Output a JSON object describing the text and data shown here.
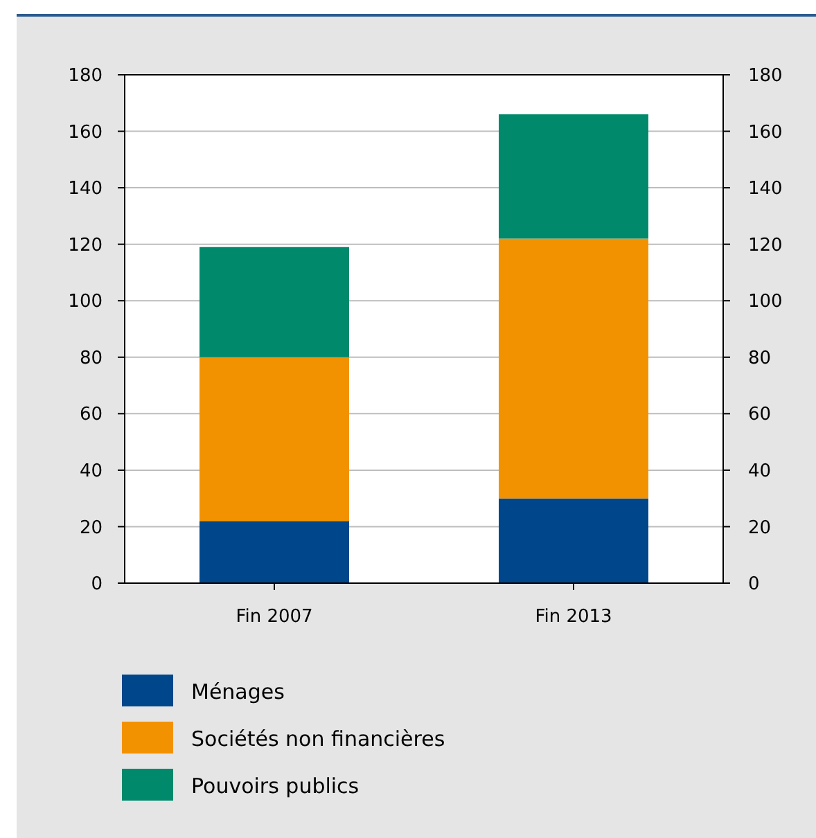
{
  "chart_data": {
    "type": "bar",
    "stacked": true,
    "categories": [
      "Fin 2007",
      "Fin 2013"
    ],
    "series": [
      {
        "name": "Ménages",
        "color": "#00468b",
        "values": [
          22,
          30
        ]
      },
      {
        "name": "Sociétés non financières",
        "color": "#f39200",
        "values": [
          58,
          92
        ]
      },
      {
        "name": "Pouvoirs publics",
        "color": "#00896b",
        "values": [
          39,
          44
        ]
      }
    ],
    "ylim": [
      0,
      180
    ],
    "yticks": [
      0,
      20,
      40,
      60,
      80,
      100,
      120,
      140,
      160,
      180
    ],
    "y2lim": [
      0,
      180
    ],
    "y2ticks": [
      0,
      20,
      40,
      60,
      80,
      100,
      120,
      140,
      160,
      180
    ],
    "grid": "y",
    "legend": "bottom left"
  }
}
